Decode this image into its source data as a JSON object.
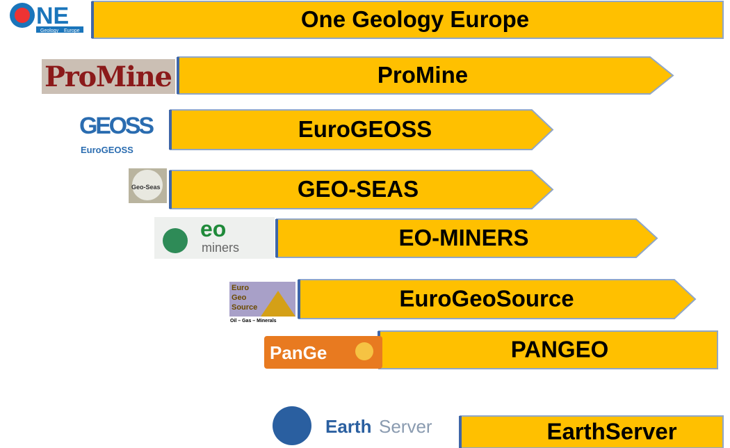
{
  "items": [
    {
      "label": "One Geology Europe",
      "logo": {
        "text": "NE",
        "sub1": "Geology",
        "sub2": "Europe"
      }
    },
    {
      "label": "ProMine",
      "logo": {
        "text": "ProMine"
      }
    },
    {
      "label": "EuroGEOSS",
      "logo": {
        "text": "GEOSS",
        "sub1": "EuroGEOSS"
      }
    },
    {
      "label": "GEO-SEAS",
      "logo": {
        "text": "Geo-Seas"
      }
    },
    {
      "label": "EO-MINERS",
      "logo": {
        "text": "eo",
        "sub1": "miners"
      }
    },
    {
      "label": "EuroGeoSource",
      "logo": {
        "text": "Euro",
        "sub1": "Geo",
        "sub2": "Source",
        "sub3": "Oil – Gas – Minerals"
      }
    },
    {
      "label": "PANGEO",
      "logo": {
        "text": "PanGe"
      }
    },
    {
      "label": "EarthServer",
      "logo": {
        "text": "Earth",
        "sub1": "Server"
      }
    }
  ]
}
